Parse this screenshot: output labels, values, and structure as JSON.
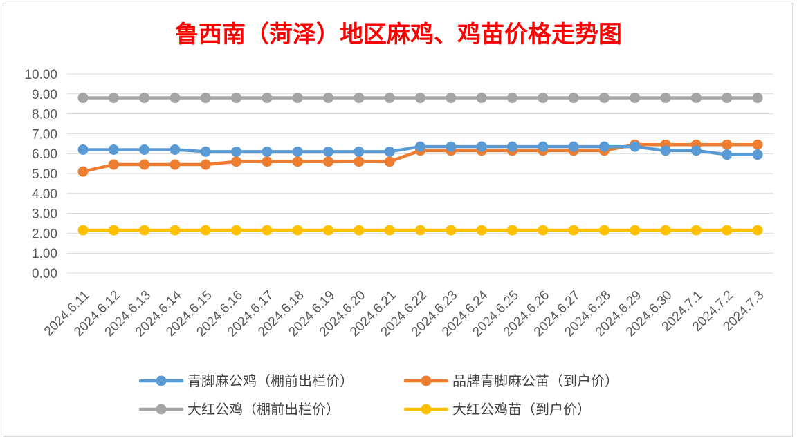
{
  "chart_data": {
    "type": "line",
    "title": "鲁西南（菏泽）地区麻鸡、鸡苗价格走势图",
    "xlabel": "",
    "ylabel": "",
    "ylim": [
      0,
      10
    ],
    "ytick_labels": [
      "0.00",
      "1.00",
      "2.00",
      "3.00",
      "4.00",
      "5.00",
      "6.00",
      "7.00",
      "8.00",
      "9.00",
      "10.00"
    ],
    "grid": true,
    "legend_position": "bottom",
    "categories": [
      "2024.6.11",
      "2024.6.12",
      "2024.6.13",
      "2024.6.14",
      "2024.6.15",
      "2024.6.16",
      "2024.6.17",
      "2024.6.18",
      "2024.6.19",
      "2024.6.20",
      "2024.6.21",
      "2024.6.22",
      "2024.6.23",
      "2024.6.24",
      "2024.6.25",
      "2024.6.26",
      "2024.6.27",
      "2024.6.28",
      "2024.6.29",
      "2024.6.30",
      "2024.7.1",
      "2024.7.2",
      "2024.7.3"
    ],
    "series": [
      {
        "name": "青脚麻公鸡（棚前出栏价）",
        "color": "#5b9bd5",
        "values": [
          6.2,
          6.2,
          6.2,
          6.2,
          6.1,
          6.1,
          6.1,
          6.1,
          6.1,
          6.1,
          6.1,
          6.35,
          6.35,
          6.35,
          6.35,
          6.35,
          6.35,
          6.35,
          6.35,
          6.15,
          6.15,
          5.95,
          5.95
        ]
      },
      {
        "name": "品牌青脚麻公苗（到户价）",
        "color": "#ed7d31",
        "values": [
          5.1,
          5.45,
          5.45,
          5.45,
          5.45,
          5.6,
          5.6,
          5.6,
          5.6,
          5.6,
          5.6,
          6.15,
          6.15,
          6.15,
          6.15,
          6.15,
          6.15,
          6.15,
          6.45,
          6.45,
          6.45,
          6.45,
          6.45
        ]
      },
      {
        "name": "大红公鸡（棚前出栏价）",
        "color": "#a5a5a5",
        "values": [
          8.8,
          8.8,
          8.8,
          8.8,
          8.8,
          8.8,
          8.8,
          8.8,
          8.8,
          8.8,
          8.8,
          8.8,
          8.8,
          8.8,
          8.8,
          8.8,
          8.8,
          8.8,
          8.8,
          8.8,
          8.8,
          8.8,
          8.8
        ]
      },
      {
        "name": "大红公鸡苗（到户价）",
        "color": "#ffc000",
        "values": [
          2.15,
          2.15,
          2.15,
          2.15,
          2.15,
          2.15,
          2.15,
          2.15,
          2.15,
          2.15,
          2.15,
          2.15,
          2.15,
          2.15,
          2.15,
          2.15,
          2.15,
          2.15,
          2.15,
          2.15,
          2.15,
          2.15,
          2.15
        ]
      }
    ],
    "legend_order": [
      0,
      1,
      2,
      3
    ]
  }
}
